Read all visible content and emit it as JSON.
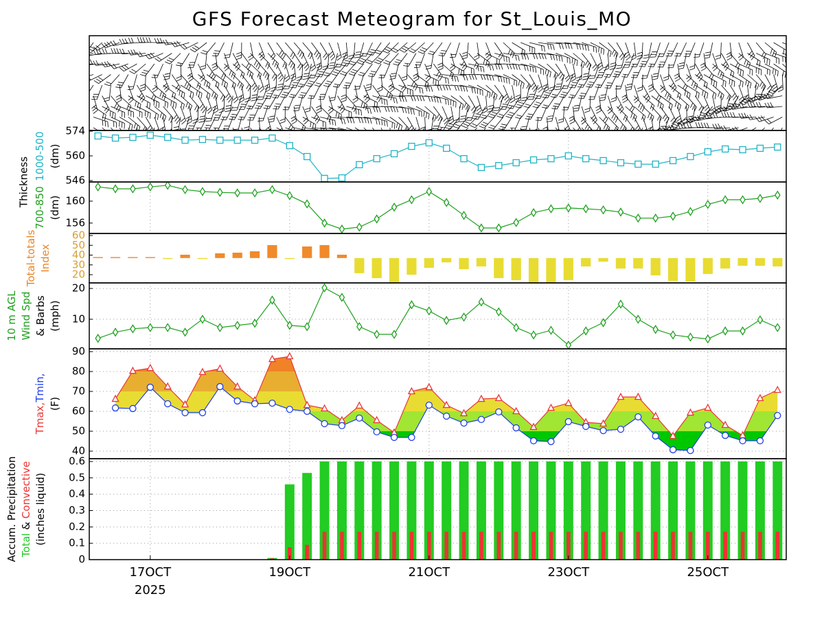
{
  "title": "GFS Forecast Meteogram for St_Louis_MO",
  "categories": [
    null,
    null,
    null,
    "17OCT",
    null,
    null,
    null,
    null,
    null,
    null,
    null,
    "19OCT",
    null,
    null,
    null,
    null,
    null,
    null,
    null,
    "21OCT",
    null,
    null,
    null,
    null,
    null,
    null,
    null,
    "23OCT",
    null,
    null,
    null,
    null,
    null,
    null,
    null,
    "25OCT",
    null,
    null,
    null,
    null
  ],
  "year_label": "2025",
  "chart_data": [
    {
      "type": "barbs"
    },
    {
      "type": "line",
      "group_label": "Thickness",
      "ylabel": [
        [
          {
            "text": "1000-500",
            "color": "#1fb4c6"
          }
        ],
        [
          {
            "text": "(dm)",
            "color": "#000000"
          }
        ]
      ],
      "ylim": [
        545.2,
        574.4
      ],
      "yticks": [
        546,
        560,
        574
      ],
      "grid": false,
      "xgrid": true,
      "series": [
        {
          "color": "#1fb4c6",
          "marker": "square",
          "values": [
            571.3,
            570.1,
            570.5,
            571.7,
            570.5,
            568.9,
            569.3,
            568.9,
            568.9,
            568.9,
            570.1,
            565.8,
            559.6,
            547.2,
            547.5,
            555,
            558.4,
            561.2,
            565.4,
            567.4,
            564.3,
            558.4,
            553.4,
            554.5,
            556.1,
            557.7,
            558.4,
            560,
            558.4,
            557.3,
            556.1,
            555.3,
            555.3,
            557.3,
            559.6,
            562.3,
            563.9,
            563.5,
            564.3,
            565
          ]
        }
      ]
    },
    {
      "type": "line",
      "ylabel": [
        [
          {
            "text": "700-850",
            "color": "#1ea01e"
          }
        ],
        [
          {
            "text": "(dm)",
            "color": "#000000"
          }
        ]
      ],
      "ylim": [
        154.1,
        163.5
      ],
      "yticks": [
        156,
        160
      ],
      "grid": false,
      "xgrid": true,
      "series": [
        {
          "color": "#1ea01e",
          "marker": "diamond",
          "values": [
            162.6,
            162.25,
            162.25,
            162.6,
            162.9,
            162.1,
            161.75,
            161.6,
            161.5,
            161.5,
            162.1,
            161,
            159.5,
            156,
            154.9,
            155.25,
            156.75,
            158.9,
            160.25,
            161.75,
            159.75,
            157.4,
            155.1,
            155.1,
            156.1,
            157.9,
            158.6,
            158.75,
            158.6,
            158.4,
            158,
            156.9,
            156.9,
            157.25,
            158.1,
            159.4,
            160.25,
            160.25,
            160.5,
            161.1
          ]
        }
      ]
    },
    {
      "type": "bar",
      "ylabel": [
        [
          {
            "text": "Total-totals",
            "color": "#e8862a"
          }
        ],
        [
          {
            "text": "Index",
            "color": "#e8862a"
          }
        ]
      ],
      "ylim": [
        11.6,
        62.1
      ],
      "yticks": [
        20,
        30,
        40,
        50,
        60
      ],
      "tick_color": "#d9a030",
      "grid": false,
      "xgrid": false,
      "base": 37,
      "color_above": "#f08a2a",
      "color_below": "#e8dc32",
      "values": [
        38,
        38,
        38,
        38,
        36,
        40.4,
        36,
        41.8,
        42.5,
        43.9,
        50.2,
        36,
        48.8,
        50.2,
        40.4,
        21.5,
        16.5,
        11.6,
        20,
        27,
        32.6,
        25.6,
        28.4,
        16.5,
        14.4,
        11.6,
        11.6,
        14.4,
        28.4,
        33.3,
        26.3,
        26.3,
        19.3,
        13.7,
        13,
        20.7,
        26.3,
        29.1,
        29.1,
        28.4
      ]
    },
    {
      "type": "line",
      "ylabel": [
        [
          {
            "text": "10 m AGL",
            "color": "#1ea01e"
          }
        ],
        [
          {
            "text": "Wind Spd",
            "color": "#1ea01e"
          }
        ],
        [
          {
            "text": "& Barbs",
            "color": "#000000"
          }
        ],
        [
          {
            "text": "(mph)",
            "color": "#000000"
          }
        ]
      ],
      "ylim": [
        0.4,
        21.8
      ],
      "yticks": [
        10,
        20
      ],
      "grid": true,
      "xgrid": true,
      "series": [
        {
          "color": "#1ea01e",
          "marker": "diamond",
          "values": [
            3.8,
            5.8,
            6.9,
            7.3,
            7.3,
            5.8,
            10,
            7.3,
            8,
            8.7,
            16.2,
            8,
            7.6,
            20.2,
            17.1,
            7.6,
            5.1,
            5.1,
            14.7,
            12.7,
            9.6,
            10.7,
            15.6,
            12.4,
            7.3,
            4.9,
            6.4,
            1.6,
            6.2,
            8.9,
            14.9,
            10,
            6.7,
            4.9,
            4.2,
            3.6,
            6.2,
            6.2,
            9.8,
            7.3
          ]
        }
      ]
    },
    {
      "type": "range_area",
      "ylabel": [
        [
          {
            "text": "Tmax,",
            "color": "#e83838"
          },
          {
            "text": "Tmin,",
            "color": "#2040e8"
          }
        ],
        [
          {
            "text": "(F)",
            "color": "#000000"
          }
        ]
      ],
      "ylim": [
        36.2,
        91.4
      ],
      "yticks": [
        40,
        50,
        60,
        70,
        80,
        90
      ],
      "grid": true,
      "xgrid": true,
      "fill_colors": [
        "#00c800",
        "#a0e632",
        "#e8dc32",
        "#e8ae30",
        "#f08228"
      ],
      "series": [
        {
          "color": "#e83838",
          "marker": "triangle",
          "values": [
            null,
            66.2,
            80.3,
            81.7,
            72.4,
            63.4,
            79.7,
            81.4,
            72.4,
            65.5,
            86.2,
            87.6,
            63.1,
            61.4,
            55.5,
            62.8,
            55.5,
            49.3,
            70,
            72.1,
            63.1,
            59,
            66.2,
            66.6,
            60,
            52.1,
            61.7,
            64.1,
            54.5,
            53.8,
            67.2,
            67.2,
            57.6,
            47.6,
            59.3,
            61.7,
            53.1,
            47.9,
            66.6,
            70.7
          ]
        },
        {
          "color": "#2040e8",
          "marker": "circle",
          "values": [
            null,
            61.7,
            61.4,
            72.1,
            63.8,
            59.3,
            59.3,
            72.4,
            65.2,
            63.8,
            64.1,
            61,
            60,
            53.8,
            52.8,
            56.6,
            49.7,
            46.9,
            46.9,
            63.1,
            57.6,
            54.1,
            55.9,
            59.7,
            51.7,
            45.2,
            44.8,
            54.8,
            52.4,
            50.3,
            51,
            57.2,
            47.6,
            40.7,
            40.3,
            53.1,
            47.9,
            45.2,
            45.2,
            57.9
          ]
        }
      ]
    },
    {
      "type": "overlay_bar",
      "ylabel": [
        [
          {
            "text": "Accum. Precipitation",
            "color": "#000000"
          }
        ],
        [
          {
            "text": "Total",
            "color": "#22c822"
          },
          {
            "text": " & ",
            "color": "#000000"
          },
          {
            "text": "Convective",
            "color": "#ee3333"
          }
        ],
        [
          {
            "text": "(inches liquid)",
            "color": "#000000"
          }
        ]
      ],
      "ylim": [
        0,
        0.617
      ],
      "yticks": [
        0,
        0.1,
        0.2,
        0.3,
        0.4,
        0.5,
        0.6
      ],
      "grid": true,
      "xgrid": true,
      "series": [
        {
          "color": "#22cc22",
          "values": [
            0,
            0,
            0,
            0,
            0,
            0,
            0,
            0,
            0,
            0,
            0.01,
            0.46,
            0.53,
            0.6,
            0.6,
            0.6,
            0.6,
            0.6,
            0.6,
            0.6,
            0.6,
            0.6,
            0.6,
            0.6,
            0.6,
            0.6,
            0.6,
            0.6,
            0.6,
            0.6,
            0.6,
            0.6,
            0.6,
            0.6,
            0.6,
            0.6,
            0.6,
            0.6,
            0.6,
            0.6
          ]
        },
        {
          "color": "#ee3333",
          "values": [
            0,
            0,
            0,
            0,
            0,
            0,
            0,
            0,
            0,
            0,
            0.008,
            0.075,
            0.09,
            0.17,
            0.17,
            0.17,
            0.17,
            0.17,
            0.17,
            0.17,
            0.17,
            0.17,
            0.17,
            0.17,
            0.17,
            0.17,
            0.17,
            0.17,
            0.17,
            0.17,
            0.17,
            0.17,
            0.17,
            0.17,
            0.17,
            0.17,
            0.17,
            0.17,
            0.17,
            0.17
          ]
        }
      ]
    }
  ]
}
